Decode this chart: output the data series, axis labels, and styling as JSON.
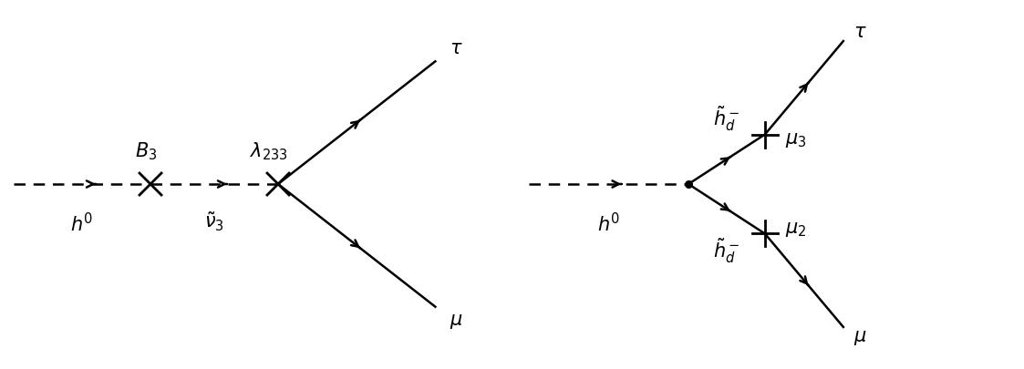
{
  "bg_color": "#ffffff",
  "line_color": "#000000",
  "fig_width": 11.23,
  "fig_height": 4.06,
  "dpi": 100,
  "diagram1": {
    "h0_label": "$h^0$",
    "B3_label": "$B_3$",
    "nu3_label": "$\\tilde{\\nu}_3$",
    "lambda_label": "$\\lambda_{233}$",
    "tau_label": "$\\tau$",
    "mu_label": "$\\mu$"
  },
  "diagram2": {
    "h0_label": "$h^0$",
    "hd_upper_label": "$\\tilde{h}_d^-$",
    "hd_lower_label": "$\\tilde{h}_d^-$",
    "mu3_label": "$\\mu_3$",
    "mu2_label": "$\\mu_2$",
    "tau_label": "$\\tau$",
    "mu_label": "$\\mu$"
  },
  "fontsize": 15,
  "lw": 1.8,
  "lw_vertex": 2.0
}
